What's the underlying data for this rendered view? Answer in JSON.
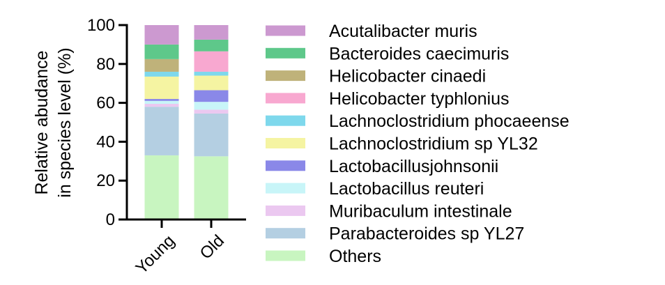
{
  "chart_data": {
    "type": "bar",
    "stacked": true,
    "title": "",
    "xlabel": "",
    "ylabel_line1": "Relative abudance",
    "ylabel_line2": "in species level (%)",
    "ylim": [
      0,
      100
    ],
    "yticks": [
      0,
      20,
      40,
      60,
      80,
      100
    ],
    "ytick_labels": [
      "0",
      "20",
      "40",
      "60",
      "80",
      "100"
    ],
    "categories": [
      "Young",
      "Old"
    ],
    "legend_position": "right",
    "series": [
      {
        "name": "Others",
        "color": "#c8f5c0",
        "values": [
          33,
          32.5
        ]
      },
      {
        "name": "Parabacteroides sp YL27",
        "color": "#b4cfe2",
        "values": [
          25,
          22
        ]
      },
      {
        "name": "Muribaculum intestinale",
        "color": "#ebc8f0",
        "values": [
          1.5,
          2
        ]
      },
      {
        "name": "Lactobacillus reuteri",
        "color": "#c8f5f8",
        "values": [
          1.5,
          4
        ]
      },
      {
        "name": "Lactobacillusjohnsonii",
        "color": "#8a88e8",
        "values": [
          1,
          6
        ]
      },
      {
        "name": "Lachnoclostridium sp YL32",
        "color": "#f5f4a2",
        "values": [
          11.5,
          7.5
        ]
      },
      {
        "name": "Lachnoclostridium phocaeense",
        "color": "#7ed8ec",
        "values": [
          2.5,
          2
        ]
      },
      {
        "name": "Helicobacter typhlonius",
        "color": "#f8a8d0",
        "values": [
          0,
          10.5
        ]
      },
      {
        "name": "Helicobacter cinaedi",
        "color": "#bfb27a",
        "values": [
          6.5,
          0
        ]
      },
      {
        "name": "Bacteroides caecimuris",
        "color": "#5ec88a",
        "values": [
          7.5,
          6
        ]
      },
      {
        "name": "Acutalibacter muris",
        "color": "#cc99d0",
        "values": [
          10,
          7.5
        ]
      }
    ]
  }
}
